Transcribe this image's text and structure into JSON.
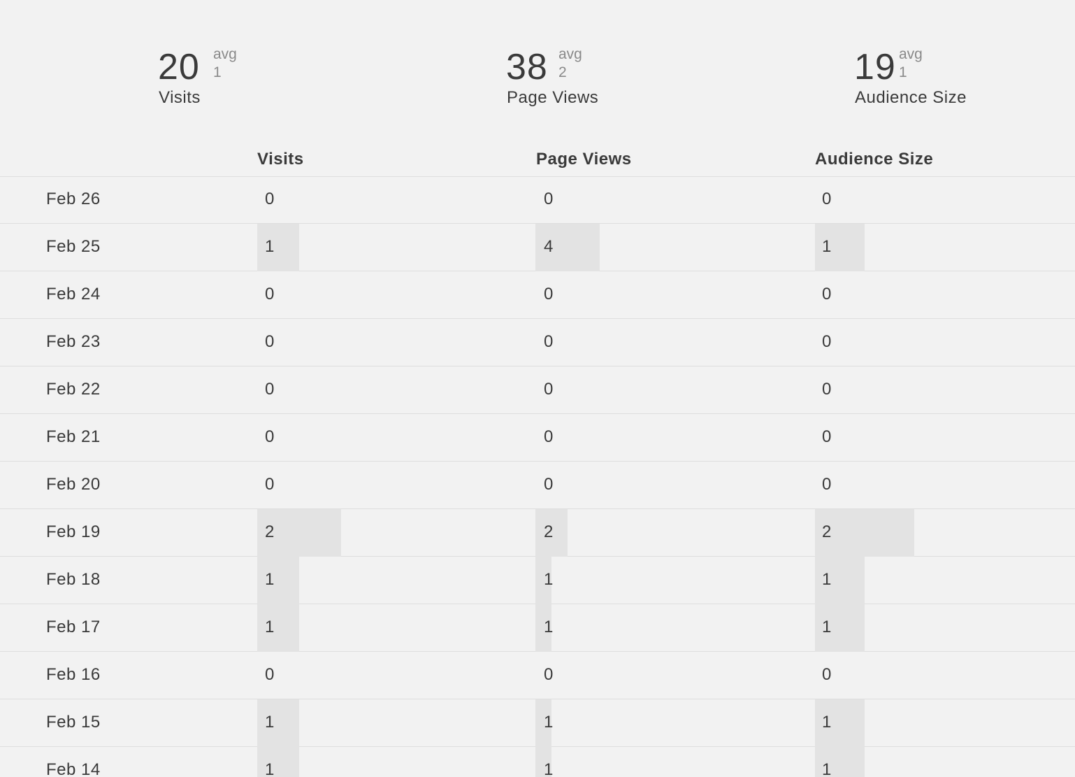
{
  "summary": [
    {
      "total": "20",
      "avg_label": "avg",
      "avg": "1",
      "label": "Visits"
    },
    {
      "total": "38",
      "avg_label": "avg",
      "avg": "2",
      "label": "Page Views"
    },
    {
      "total": "19",
      "avg_label": "avg",
      "avg": "1",
      "label": "Audience Size"
    }
  ],
  "table": {
    "columns": [
      "Visits",
      "Page Views",
      "Audience Size"
    ],
    "rows": [
      {
        "date": "Feb 26",
        "visits": 0,
        "page_views": 0,
        "audience_size": 0
      },
      {
        "date": "Feb 25",
        "visits": 1,
        "page_views": 4,
        "audience_size": 1
      },
      {
        "date": "Feb 24",
        "visits": 0,
        "page_views": 0,
        "audience_size": 0
      },
      {
        "date": "Feb 23",
        "visits": 0,
        "page_views": 0,
        "audience_size": 0
      },
      {
        "date": "Feb 22",
        "visits": 0,
        "page_views": 0,
        "audience_size": 0
      },
      {
        "date": "Feb 21",
        "visits": 0,
        "page_views": 0,
        "audience_size": 0
      },
      {
        "date": "Feb 20",
        "visits": 0,
        "page_views": 0,
        "audience_size": 0
      },
      {
        "date": "Feb 19",
        "visits": 2,
        "page_views": 2,
        "audience_size": 2
      },
      {
        "date": "Feb 18",
        "visits": 1,
        "page_views": 1,
        "audience_size": 1
      },
      {
        "date": "Feb 17",
        "visits": 1,
        "page_views": 1,
        "audience_size": 1
      },
      {
        "date": "Feb 16",
        "visits": 0,
        "page_views": 0,
        "audience_size": 0
      },
      {
        "date": "Feb 15",
        "visits": 1,
        "page_views": 1,
        "audience_size": 1
      },
      {
        "date": "Feb 14",
        "visits": 1,
        "page_views": 1,
        "audience_size": 1
      }
    ]
  },
  "colors": {
    "background": "#f2f2f2",
    "bar": "#e3e3e3",
    "text": "#3a3a3a",
    "muted": "#8a8a8a",
    "divider": "#dedede"
  }
}
